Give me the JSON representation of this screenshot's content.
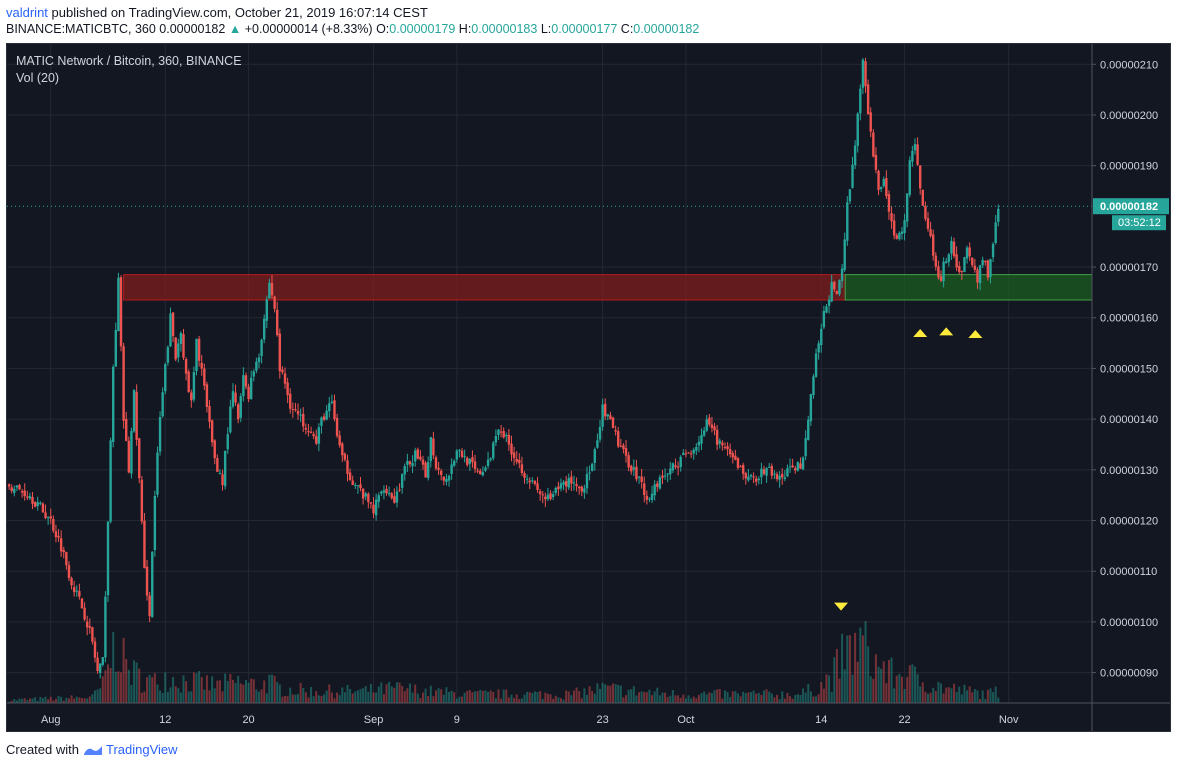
{
  "header": {
    "author": "valdrint",
    "published_text": "published on TradingView.com, October 21, 2019 16:07:14 CEST",
    "symbol_line": "BINANCE:MATICBTC, 360",
    "last": "0.00000182",
    "change": "+0.00000014 (+8.33%)",
    "o_label": "O:",
    "o": "0.00000179",
    "h_label": "H:",
    "h": "0.00000183",
    "l_label": "L:",
    "l": "0.00000177",
    "c_label": "C:",
    "c": "0.00000182"
  },
  "legend": {
    "title": "MATIC Network / Bitcoin, 360, BINANCE",
    "volume": "Vol (20)"
  },
  "price_tag": {
    "price": "0.00000182",
    "countdown": "03:52:12"
  },
  "footer": {
    "created_with": "Created with",
    "brand": "TradingView"
  },
  "colors": {
    "background": "#131722",
    "up": "#26a69a",
    "down": "#ef5350",
    "resistance_zone": "#7f1d1d",
    "support_zone": "#1b5e20",
    "marker": "#ffeb3b",
    "price_line": "#26a69a"
  },
  "chart_data": {
    "type": "candlestick",
    "title": "MATIC Network / Bitcoin, 360, BINANCE",
    "y_ticks": [
      "0.00000210",
      "0.00000200",
      "0.00000190",
      "0.00000170",
      "0.00000160",
      "0.00000150",
      "0.00000140",
      "0.00000130",
      "0.00000120",
      "0.00000110",
      "0.00000100",
      "0.00000090"
    ],
    "y_tick_values": [
      210,
      200,
      190,
      170,
      160,
      150,
      140,
      130,
      120,
      110,
      100,
      90
    ],
    "y_unit": "1e-8 BTC",
    "ylim": [
      84,
      214
    ],
    "x_ticks": [
      "Aug",
      "12",
      "20",
      "Sep",
      "9",
      "23",
      "Oct",
      "14",
      "22",
      "Nov"
    ],
    "x_tick_days": [
      0,
      11,
      19,
      31,
      39,
      53,
      61,
      74,
      82,
      92
    ],
    "x_day0": "2019-08-01",
    "xlim": [
      -4.2,
      100
    ],
    "close_path": [
      [
        -4,
        127
      ],
      [
        -2,
        125
      ],
      [
        0,
        120
      ],
      [
        1,
        115
      ],
      [
        2,
        108
      ],
      [
        3,
        103
      ],
      [
        3.5,
        100
      ],
      [
        4,
        96
      ],
      [
        4.5,
        90
      ],
      [
        5,
        92
      ],
      [
        5.5,
        120
      ],
      [
        6,
        150
      ],
      [
        6.5,
        167
      ],
      [
        7,
        140
      ],
      [
        7.5,
        130
      ],
      [
        8,
        145
      ],
      [
        8.5,
        128
      ],
      [
        9,
        110
      ],
      [
        9.5,
        102
      ],
      [
        10,
        125
      ],
      [
        10.5,
        140
      ],
      [
        11,
        150
      ],
      [
        11.5,
        160
      ],
      [
        12,
        152
      ],
      [
        12.5,
        158
      ],
      [
        13,
        148
      ],
      [
        13.5,
        143
      ],
      [
        14,
        155
      ],
      [
        14.5,
        150
      ],
      [
        15,
        142
      ],
      [
        15.5,
        135
      ],
      [
        16,
        130
      ],
      [
        16.5,
        128
      ],
      [
        17,
        138
      ],
      [
        17.5,
        145
      ],
      [
        18,
        140
      ],
      [
        18.5,
        148
      ],
      [
        19,
        145
      ],
      [
        19.5,
        150
      ],
      [
        20,
        153
      ],
      [
        20.5,
        160
      ],
      [
        21,
        167
      ],
      [
        21.5,
        162
      ],
      [
        22,
        150
      ],
      [
        22.5,
        147
      ],
      [
        23,
        143
      ],
      [
        24,
        140
      ],
      [
        25,
        138
      ],
      [
        25.5,
        135
      ],
      [
        26,
        140
      ],
      [
        27,
        143
      ],
      [
        27.5,
        137
      ],
      [
        28,
        132
      ],
      [
        29,
        128
      ],
      [
        30,
        125
      ],
      [
        31,
        122
      ],
      [
        32,
        127
      ],
      [
        33,
        124
      ],
      [
        34,
        130
      ],
      [
        35,
        133
      ],
      [
        36,
        129
      ],
      [
        36.5,
        136
      ],
      [
        37,
        131
      ],
      [
        38,
        128
      ],
      [
        39,
        134
      ],
      [
        40,
        132
      ],
      [
        41,
        129
      ],
      [
        42,
        131
      ],
      [
        43,
        139
      ],
      [
        44,
        135
      ],
      [
        45,
        131
      ],
      [
        46,
        128
      ],
      [
        47,
        125
      ],
      [
        48,
        124
      ],
      [
        49,
        127
      ],
      [
        50,
        128
      ],
      [
        51,
        126
      ],
      [
        52,
        131
      ],
      [
        52.5,
        135
      ],
      [
        53,
        142
      ],
      [
        54,
        138
      ],
      [
        55,
        133
      ],
      [
        56,
        130
      ],
      [
        57,
        126
      ],
      [
        57.5,
        124
      ],
      [
        58,
        127
      ],
      [
        59,
        129
      ],
      [
        60,
        131
      ],
      [
        61,
        133
      ],
      [
        62,
        135
      ],
      [
        63,
        139
      ],
      [
        64,
        136
      ],
      [
        65,
        133
      ],
      [
        66,
        131
      ],
      [
        67,
        128
      ],
      [
        68,
        129
      ],
      [
        69,
        130
      ],
      [
        70,
        128
      ],
      [
        71,
        130
      ],
      [
        72,
        131
      ],
      [
        72.5,
        136
      ],
      [
        73,
        145
      ],
      [
        73.5,
        152
      ],
      [
        74,
        158
      ],
      [
        74.5,
        163
      ],
      [
        75,
        166
      ],
      [
        75.5,
        164
      ],
      [
        76,
        170
      ],
      [
        76.5,
        182
      ],
      [
        77,
        190
      ],
      [
        77.5,
        200
      ],
      [
        78,
        210
      ],
      [
        78.5,
        200
      ],
      [
        79,
        192
      ],
      [
        79.5,
        185
      ],
      [
        80,
        188
      ],
      [
        80.5,
        180
      ],
      [
        81,
        177
      ],
      [
        81.5,
        176
      ],
      [
        82,
        180
      ],
      [
        82.5,
        190
      ],
      [
        83,
        195
      ],
      [
        83.5,
        185
      ],
      [
        84,
        180
      ],
      [
        84.5,
        176
      ],
      [
        85,
        170
      ],
      [
        85.5,
        168
      ],
      [
        86,
        172
      ],
      [
        86.5,
        175
      ],
      [
        87,
        170
      ],
      [
        87.5,
        169
      ],
      [
        88,
        174
      ],
      [
        88.5,
        170
      ],
      [
        89,
        168
      ],
      [
        89.5,
        171
      ],
      [
        90,
        169
      ],
      [
        90.5,
        175
      ],
      [
        91,
        182
      ]
    ],
    "volume_path": [
      [
        -4,
        1
      ],
      [
        0,
        1.5
      ],
      [
        4,
        2
      ],
      [
        5,
        6
      ],
      [
        6,
        18
      ],
      [
        6.5,
        22
      ],
      [
        7,
        14
      ],
      [
        8,
        10
      ],
      [
        9,
        8
      ],
      [
        10,
        7
      ],
      [
        11,
        9
      ],
      [
        12,
        8
      ],
      [
        14,
        7
      ],
      [
        16,
        6
      ],
      [
        18,
        7
      ],
      [
        20,
        6
      ],
      [
        21,
        7
      ],
      [
        22,
        5
      ],
      [
        25,
        4
      ],
      [
        30,
        4
      ],
      [
        33,
        5
      ],
      [
        36,
        4
      ],
      [
        40,
        3
      ],
      [
        45,
        3
      ],
      [
        50,
        3
      ],
      [
        53,
        5
      ],
      [
        56,
        4
      ],
      [
        60,
        3
      ],
      [
        64,
        3
      ],
      [
        68,
        3
      ],
      [
        72,
        3
      ],
      [
        74,
        6
      ],
      [
        75,
        9
      ],
      [
        76,
        15
      ],
      [
        77,
        18
      ],
      [
        78,
        20
      ],
      [
        79,
        14
      ],
      [
        80,
        12
      ],
      [
        81,
        9
      ],
      [
        82,
        10
      ],
      [
        84,
        7
      ],
      [
        86,
        5
      ],
      [
        88,
        4
      ],
      [
        90,
        3
      ],
      [
        91,
        4
      ]
    ],
    "volume_max": 24,
    "zones": [
      {
        "name": "resistance",
        "x0": 7,
        "x1": 76.3,
        "y0": 163.5,
        "y1": 168.5
      },
      {
        "name": "support",
        "x0": 76.3,
        "x1": 100,
        "y0": 163.5,
        "y1": 168.5
      }
    ],
    "markers": [
      {
        "dir": "up",
        "day": 83.5,
        "price": 157
      },
      {
        "dir": "up",
        "day": 86,
        "price": 157.3
      },
      {
        "dir": "up",
        "day": 88.8,
        "price": 156.8
      },
      {
        "dir": "down",
        "day": 75.9,
        "price": 103
      }
    ],
    "last_price": 182
  }
}
